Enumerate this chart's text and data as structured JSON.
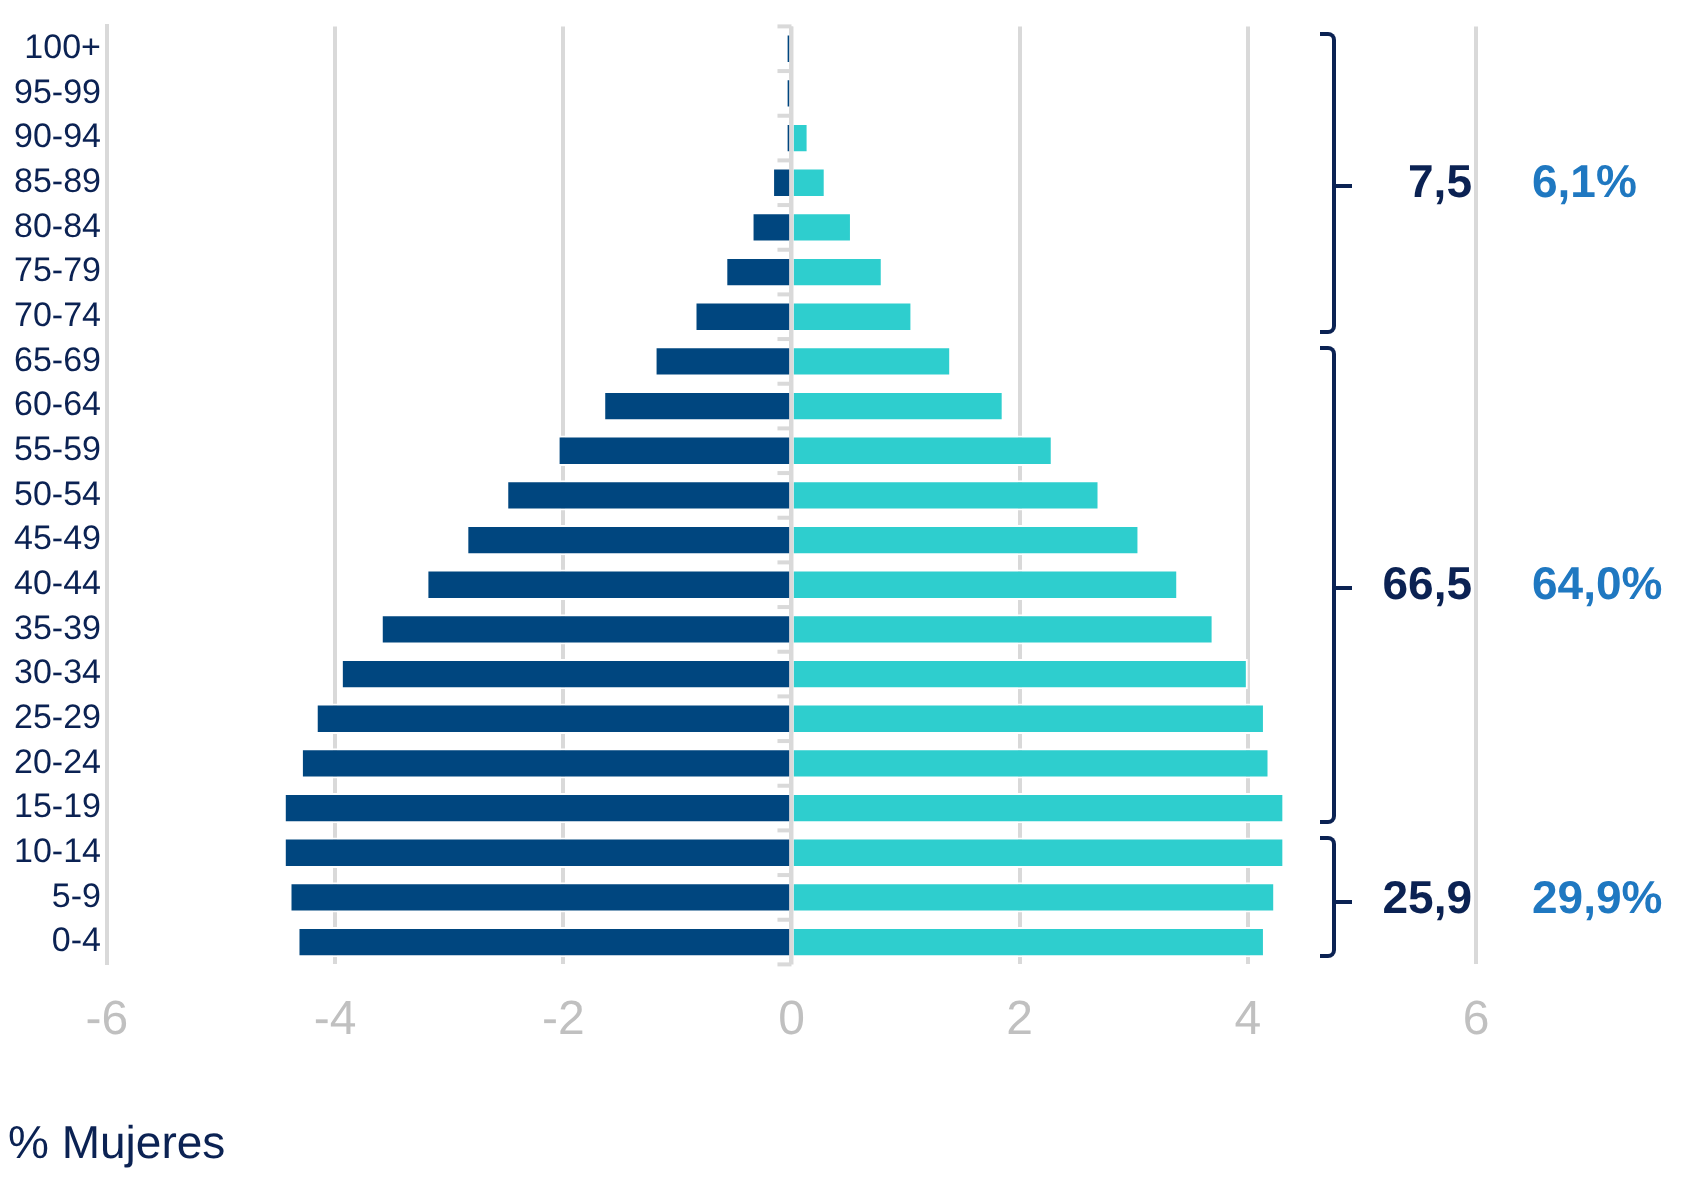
{
  "chart_data": {
    "type": "bar",
    "orientation": "horizontal",
    "stacked": true,
    "categories": [
      "100+",
      "95-99",
      "90-94",
      "85-89",
      "80-84",
      "75-79",
      "70-74",
      "65-69",
      "60-64",
      "55-59",
      "50-54",
      "45-49",
      "40-44",
      "35-39",
      "30-34",
      "25-29",
      "20-24",
      "15-19",
      "10-14",
      "5-9",
      "0-4"
    ],
    "series": [
      {
        "color": "#00467f",
        "values": [
          -0.05,
          -0.05,
          -0.05,
          -0.17,
          -0.35,
          -0.58,
          -0.85,
          -1.2,
          -1.65,
          -2.05,
          -2.5,
          -2.85,
          -3.2,
          -3.6,
          -3.95,
          -4.17,
          -4.3,
          -4.45,
          -4.45,
          -4.4,
          -4.33
        ]
      },
      {
        "color": "#2ecece",
        "values": [
          null,
          null,
          0.15,
          0.3,
          0.53,
          0.8,
          1.06,
          1.4,
          1.86,
          2.29,
          2.7,
          3.05,
          3.39,
          3.7,
          4.0,
          4.15,
          4.19,
          4.32,
          4.32,
          4.24,
          4.15
        ]
      }
    ],
    "xlim": [
      -6,
      6
    ],
    "xticks": [
      -6,
      -4,
      -2,
      0,
      2,
      4,
      6
    ],
    "grid": "x",
    "legend": false,
    "annotations": [
      "7,5",
      "6,1%",
      "66,5",
      "64,0%",
      "25,9",
      "29,9%",
      "% Mujeres"
    ]
  }
}
